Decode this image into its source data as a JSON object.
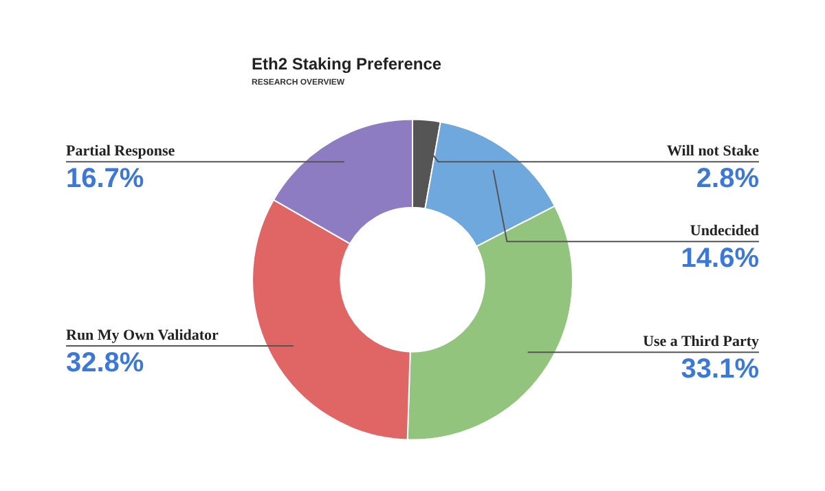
{
  "chart_data": {
    "type": "donut",
    "title": "Eth2 Staking Preference",
    "subtitle": "RESEARCH OVERVIEW",
    "categories": [
      "Will not Stake",
      "Undecided",
      "Use a Third Party",
      "Run My Own Validator",
      "Partial Response"
    ],
    "values": [
      2.8,
      14.6,
      33.1,
      32.8,
      16.7
    ],
    "value_labels": [
      "2.8%",
      "14.6%",
      "33.1%",
      "32.8%",
      "16.7%"
    ],
    "colors": [
      "#555555",
      "#6fa8dc",
      "#93c47d",
      "#e06666",
      "#8e7cc3"
    ],
    "legend": false
  }
}
